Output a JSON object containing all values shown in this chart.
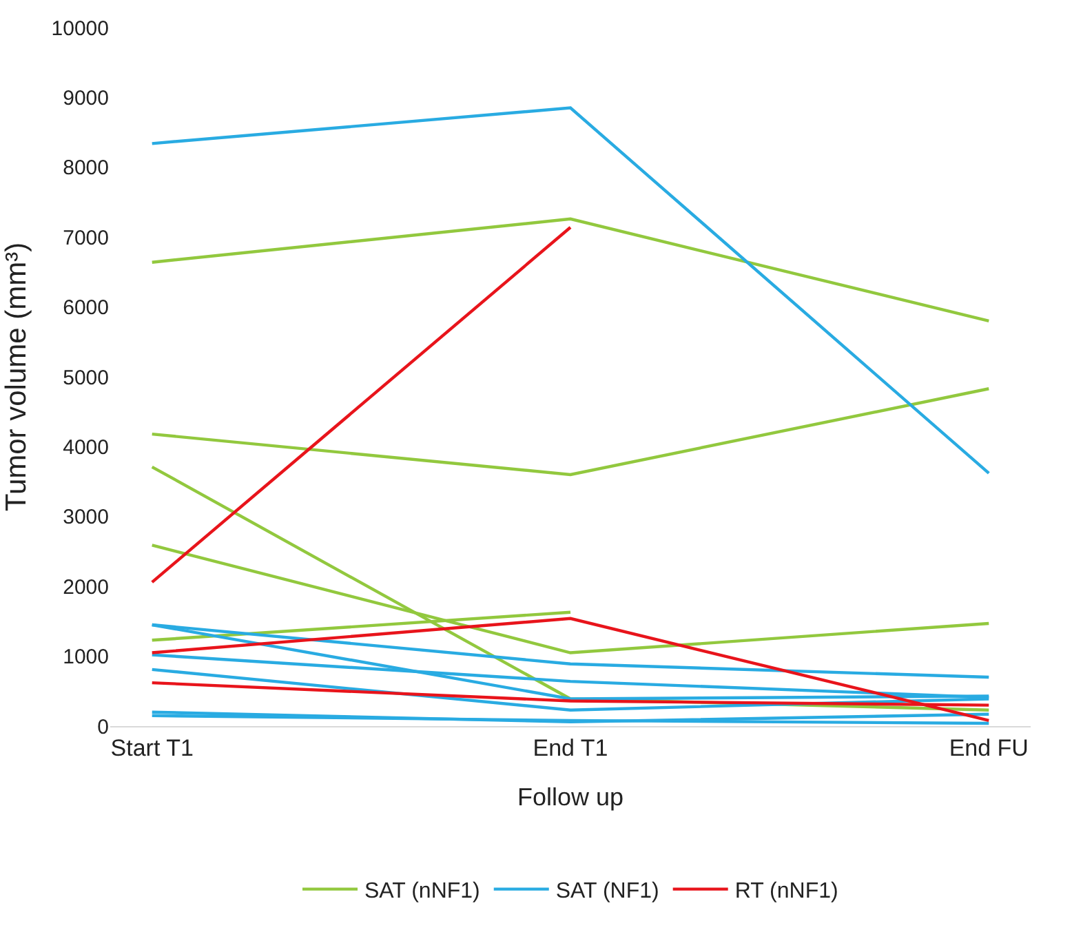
{
  "chart_data": {
    "type": "line",
    "xlabel": "Follow up",
    "ylabel": "Tumor volume (mm³)",
    "categories": [
      "Start T1",
      "End T1",
      "End FU"
    ],
    "ylim": [
      0,
      10000
    ],
    "yticks": [
      0,
      1000,
      2000,
      3000,
      4000,
      5000,
      6000,
      7000,
      8000,
      9000,
      10000
    ],
    "grid": false,
    "legend": "bottom",
    "marker": "none",
    "series": [
      {
        "name": "SAT (nNF1)",
        "color": "#92c83e",
        "values": [
          6640,
          7260,
          5800
        ]
      },
      {
        "color": "#92c83e",
        "values": [
          4180,
          3600,
          4830
        ]
      },
      {
        "color": "#92c83e",
        "values": [
          3710,
          390,
          230
        ]
      },
      {
        "color": "#92c83e",
        "values": [
          2590,
          1050,
          1470
        ]
      },
      {
        "color": "#92c83e",
        "values": [
          1230,
          1630,
          null
        ]
      },
      {
        "name": "SAT (NF1)",
        "color": "#29abe2",
        "values": [
          8340,
          8850,
          3620
        ]
      },
      {
        "color": "#29abe2",
        "values": [
          1450,
          890,
          700
        ]
      },
      {
        "color": "#29abe2",
        "values": [
          1450,
          390,
          430
        ]
      },
      {
        "color": "#29abe2",
        "values": [
          1020,
          640,
          410
        ]
      },
      {
        "color": "#29abe2",
        "values": [
          810,
          230,
          390
        ]
      },
      {
        "color": "#29abe2",
        "values": [
          200,
          60,
          170
        ]
      },
      {
        "color": "#29abe2",
        "values": [
          150,
          80,
          40
        ]
      },
      {
        "name": "RT (nNF1)",
        "color": "#e8141b",
        "values": [
          2060,
          7140,
          null
        ]
      },
      {
        "color": "#e8141b",
        "values": [
          1050,
          1540,
          80
        ]
      },
      {
        "color": "#e8141b",
        "values": [
          620,
          360,
          300
        ]
      }
    ]
  }
}
